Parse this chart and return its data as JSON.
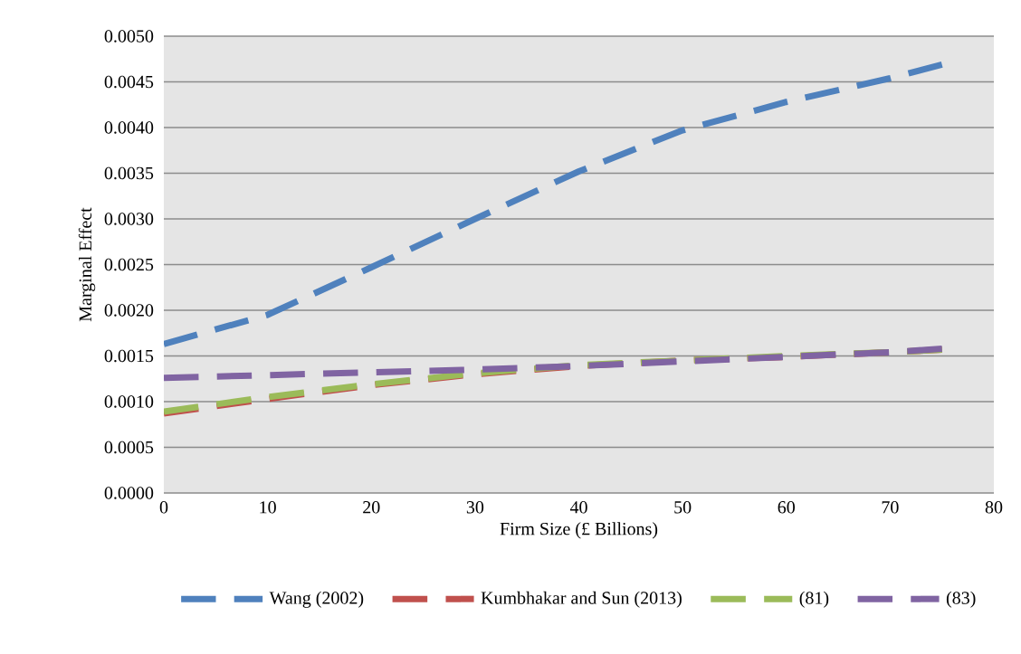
{
  "chart_data": {
    "type": "line",
    "xlabel": "Firm Size (£ Billions)",
    "ylabel": "Marginal Effect",
    "x": [
      0,
      10,
      20,
      30,
      40,
      50,
      60,
      70,
      75
    ],
    "series": [
      {
        "name": "Wang (2002)",
        "color": "#4f81bd",
        "values": [
          0.00163,
          0.00195,
          0.00247,
          0.003,
          0.00352,
          0.00397,
          0.00428,
          0.00454,
          0.00469
        ]
      },
      {
        "name": "Kumbhakar and Sun (2013)",
        "color": "#c0504d",
        "values": [
          0.00087,
          0.00103,
          0.00118,
          0.0013,
          0.00139,
          0.00145,
          0.00149,
          0.00154,
          0.00157
        ]
      },
      {
        "name": "(81)",
        "color": "#9bbb59",
        "values": [
          0.00089,
          0.00105,
          0.00119,
          0.00131,
          0.0014,
          0.00145,
          0.0015,
          0.00154,
          0.00157
        ]
      },
      {
        "name": "(83)",
        "color": "#8064a2",
        "values": [
          0.00126,
          0.00129,
          0.00132,
          0.00135,
          0.00139,
          0.00144,
          0.00149,
          0.00154,
          0.00158
        ]
      }
    ],
    "xlim": [
      0,
      80
    ],
    "xticks": [
      0,
      10,
      20,
      30,
      40,
      50,
      60,
      70,
      80
    ],
    "ylim": [
      0,
      0.005
    ],
    "yticks": [
      {
        "value": 0,
        "label": "0.0000"
      },
      {
        "value": 0.0005,
        "label": "0.0005"
      },
      {
        "value": 0.001,
        "label": "0.0010"
      },
      {
        "value": 0.0015,
        "label": "0.0015"
      },
      {
        "value": 0.002,
        "label": "0.0020"
      },
      {
        "value": 0.0025,
        "label": "0.0025"
      },
      {
        "value": 0.003,
        "label": "0.0030"
      },
      {
        "value": 0.0035,
        "label": "0.0035"
      },
      {
        "value": 0.004,
        "label": "0.0040"
      },
      {
        "value": 0.0045,
        "label": "0.0045"
      },
      {
        "value": 0.005,
        "label": "0.0050"
      }
    ],
    "grid": "y",
    "legend": "bottom",
    "line_style": "dashed",
    "marker": "none"
  }
}
